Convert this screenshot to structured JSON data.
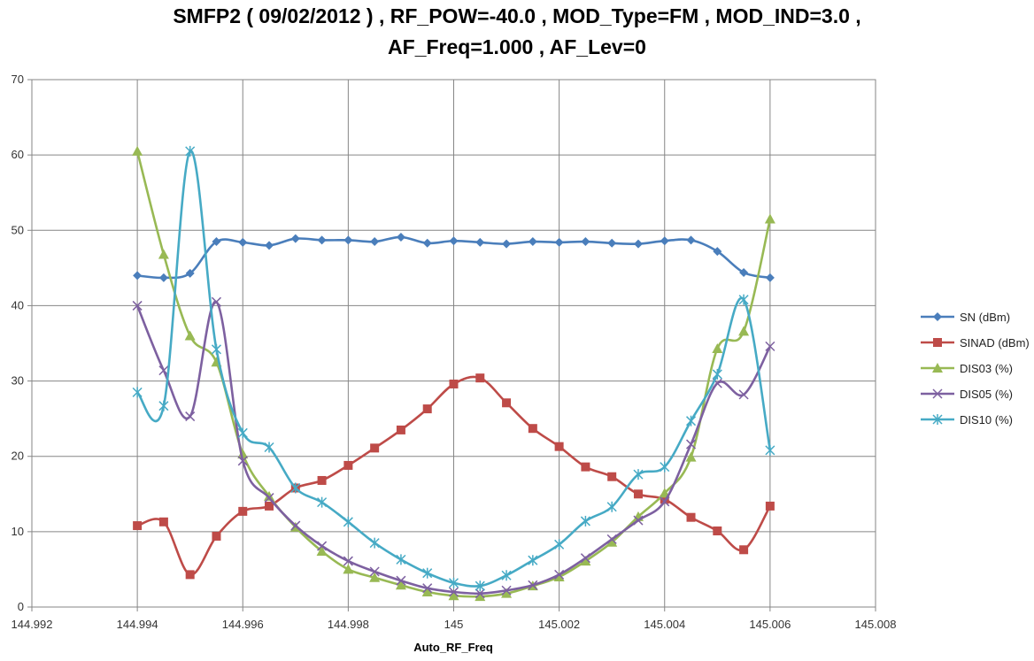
{
  "chart_data": {
    "type": "line",
    "title_lines": [
      "SMFP2 ( 09/02/2012 )  , RF_POW=-40.0 , MOD_Type=FM , MOD_IND=3.0 ,",
      "AF_Freq=1.000 , AF_Lev=0"
    ],
    "xlabel": "Auto_RF_Freq",
    "ylabel": "",
    "xlim": [
      144.992,
      145.008
    ],
    "ylim": [
      0,
      70
    ],
    "x_ticks": [
      "144.992",
      "144.994",
      "144.996",
      "144.998",
      "145",
      "145.002",
      "145.004",
      "145.006",
      "145.008"
    ],
    "y_ticks": [
      "0",
      "10",
      "20",
      "30",
      "40",
      "50",
      "60",
      "70"
    ],
    "grid": true,
    "legend_position": "right",
    "x": [
      144.994,
      144.9945,
      144.995,
      144.9955,
      144.996,
      144.9965,
      144.997,
      144.9975,
      144.998,
      144.9985,
      144.999,
      144.9995,
      145.0,
      145.0005,
      145.001,
      145.0015,
      145.002,
      145.0025,
      145.003,
      145.0035,
      145.004,
      145.0045,
      145.005,
      145.0055,
      145.006
    ],
    "series": [
      {
        "name": "SN (dBm)",
        "color": "#4a7ebb",
        "marker": "diamond",
        "values": [
          44.0,
          43.7,
          44.3,
          48.5,
          48.4,
          48.0,
          48.9,
          48.7,
          48.7,
          48.5,
          49.1,
          48.3,
          48.6,
          48.4,
          48.2,
          48.5,
          48.4,
          48.5,
          48.3,
          48.2,
          48.6,
          48.7,
          47.2,
          44.4,
          43.7
        ]
      },
      {
        "name": "SINAD (dBm)",
        "color": "#be4b48",
        "marker": "square",
        "values": [
          10.8,
          11.3,
          4.3,
          9.4,
          12.7,
          13.4,
          15.8,
          16.8,
          18.8,
          21.1,
          23.5,
          26.3,
          29.6,
          30.4,
          27.1,
          23.7,
          21.3,
          18.6,
          17.3,
          15.0,
          14.3,
          11.9,
          10.1,
          7.6,
          13.4
        ]
      },
      {
        "name": "DIS03 (%)",
        "color": "#98b954",
        "marker": "triangle",
        "values": [
          60.5,
          46.8,
          36.0,
          32.5,
          20.3,
          14.7,
          10.6,
          7.4,
          5.0,
          3.9,
          2.9,
          2.0,
          1.5,
          1.4,
          1.8,
          2.8,
          4.0,
          6.1,
          8.6,
          12.0,
          15.1,
          19.9,
          34.3,
          36.6,
          51.5
        ]
      },
      {
        "name": "DIS05 (%)",
        "color": "#7d60a0",
        "marker": "x",
        "values": [
          40.0,
          31.4,
          25.3,
          40.5,
          19.4,
          14.5,
          10.8,
          8.1,
          6.1,
          4.7,
          3.5,
          2.5,
          2.0,
          1.8,
          2.2,
          2.9,
          4.3,
          6.5,
          9.0,
          11.5,
          14.0,
          21.6,
          29.7,
          28.2,
          34.6
        ]
      },
      {
        "name": "DIS10 (%)",
        "color": "#46aac5",
        "marker": "star",
        "values": [
          28.5,
          26.7,
          60.5,
          34.2,
          23.1,
          21.2,
          15.8,
          13.9,
          11.3,
          8.5,
          6.3,
          4.5,
          3.2,
          2.8,
          4.2,
          6.2,
          8.3,
          11.4,
          13.3,
          17.6,
          18.6,
          24.7,
          30.9,
          40.8,
          20.8
        ]
      }
    ]
  }
}
